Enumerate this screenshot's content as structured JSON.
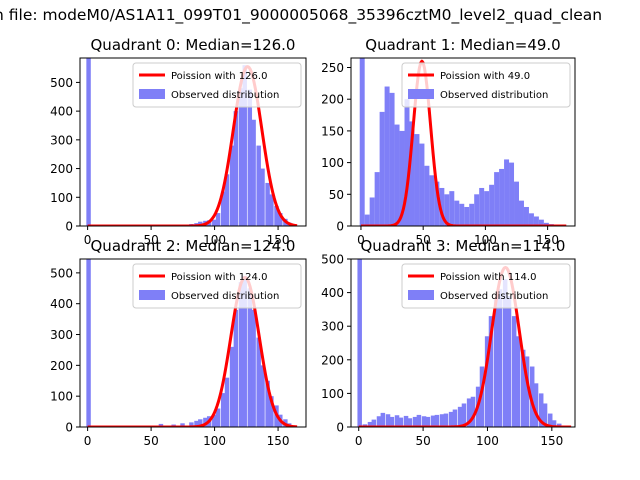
{
  "figure": {
    "suptitle": "n file: modeM0/AS1A11_099T01_9000005068_35396cztM0_level2_quad_clean"
  },
  "colors": {
    "hist": "#7f7ff7",
    "line": "#ff0000"
  },
  "chart_data": [
    {
      "type": "bar",
      "title": "Quadrant 0: Median=126.0",
      "xlim": [
        -6,
        172
      ],
      "ylim": [
        0,
        585
      ],
      "xticks": [
        0,
        50,
        100,
        150
      ],
      "yticks": [
        0,
        100,
        200,
        300,
        400,
        500
      ],
      "legend": {
        "location": "top-right",
        "line_label": "Poission with 126.0",
        "hist_label": "Observed distribution"
      },
      "bin_width": 3.5,
      "bins": [
        [
          -1,
          585
        ],
        [
          77,
          5
        ],
        [
          80,
          7
        ],
        [
          84,
          10
        ],
        [
          87,
          15
        ],
        [
          91,
          18
        ],
        [
          94,
          20
        ],
        [
          98,
          22
        ],
        [
          101,
          45
        ],
        [
          105,
          120
        ],
        [
          108,
          180
        ],
        [
          112,
          280
        ],
        [
          115,
          400
        ],
        [
          119,
          480
        ],
        [
          122,
          560
        ],
        [
          126,
          475
        ],
        [
          129,
          370
        ],
        [
          133,
          280
        ],
        [
          136,
          200
        ],
        [
          140,
          150
        ],
        [
          143,
          110
        ],
        [
          147,
          70
        ],
        [
          150,
          45
        ],
        [
          154,
          25
        ],
        [
          157,
          12
        ],
        [
          161,
          5
        ]
      ],
      "poisson_mean": 126,
      "poisson_peak": 555
    },
    {
      "type": "bar",
      "title": "Quadrant 1: Median=49.0",
      "xlim": [
        -8,
        172
      ],
      "ylim": [
        0,
        265
      ],
      "xticks": [
        0,
        50,
        100,
        150
      ],
      "yticks": [
        0,
        50,
        100,
        150,
        200,
        250
      ],
      "legend": {
        "location": "top-right",
        "line_label": "Poission with 49.0",
        "hist_label": "Observed distribution"
      },
      "bin_width": 4,
      "bins": [
        [
          -1,
          265
        ],
        [
          3,
          18
        ],
        [
          7,
          45
        ],
        [
          11,
          85
        ],
        [
          15,
          180
        ],
        [
          19,
          220
        ],
        [
          23,
          210
        ],
        [
          27,
          160
        ],
        [
          31,
          150
        ],
        [
          35,
          200
        ],
        [
          39,
          165
        ],
        [
          43,
          145
        ],
        [
          47,
          130
        ],
        [
          51,
          95
        ],
        [
          55,
          80
        ],
        [
          59,
          70
        ],
        [
          63,
          60
        ],
        [
          67,
          50
        ],
        [
          71,
          55
        ],
        [
          75,
          40
        ],
        [
          79,
          35
        ],
        [
          83,
          30
        ],
        [
          87,
          35
        ],
        [
          91,
          50
        ],
        [
          95,
          60
        ],
        [
          99,
          55
        ],
        [
          103,
          65
        ],
        [
          107,
          85
        ],
        [
          111,
          90
        ],
        [
          115,
          105
        ],
        [
          119,
          100
        ],
        [
          123,
          70
        ],
        [
          127,
          40
        ],
        [
          131,
          30
        ],
        [
          135,
          20
        ],
        [
          139,
          15
        ],
        [
          143,
          10
        ],
        [
          147,
          5
        ],
        [
          151,
          3
        ],
        [
          155,
          2
        ],
        [
          159,
          1
        ]
      ],
      "poisson_mean": 49,
      "poisson_peak": 260
    },
    {
      "type": "bar",
      "title": "Quadrant 2: Median=124.0",
      "xlim": [
        -6,
        172
      ],
      "ylim": [
        0,
        545
      ],
      "xticks": [
        0,
        50,
        100,
        150
      ],
      "yticks": [
        0,
        100,
        200,
        300,
        400,
        500
      ],
      "legend": {
        "location": "top-right",
        "line_label": "Poission with 124.0",
        "hist_label": "Observed distribution"
      },
      "bin_width": 3.5,
      "bins": [
        [
          -1,
          545
        ],
        [
          56,
          10
        ],
        [
          66,
          8
        ],
        [
          73,
          12
        ],
        [
          80,
          15
        ],
        [
          84,
          20
        ],
        [
          87,
          25
        ],
        [
          91,
          30
        ],
        [
          94,
          35
        ],
        [
          98,
          40
        ],
        [
          101,
          60
        ],
        [
          105,
          110
        ],
        [
          108,
          160
        ],
        [
          112,
          260
        ],
        [
          115,
          380
        ],
        [
          119,
          470
        ],
        [
          122,
          490
        ],
        [
          126,
          450
        ],
        [
          129,
          380
        ],
        [
          133,
          290
        ],
        [
          136,
          200
        ],
        [
          140,
          150
        ],
        [
          143,
          100
        ],
        [
          147,
          70
        ],
        [
          150,
          40
        ],
        [
          154,
          25
        ],
        [
          157,
          12
        ],
        [
          161,
          5
        ]
      ],
      "poisson_mean": 124,
      "poisson_peak": 485
    },
    {
      "type": "bar",
      "title": "Quadrant 3: Median=114.0",
      "xlim": [
        -6,
        168
      ],
      "ylim": [
        0,
        500
      ],
      "xticks": [
        0,
        50,
        100,
        150
      ],
      "yticks": [
        0,
        100,
        200,
        300,
        400,
        500
      ],
      "legend": {
        "location": "top-right",
        "line_label": "Poission with 114.0",
        "hist_label": "Observed distribution"
      },
      "bin_width": 3.5,
      "bins": [
        [
          -1,
          500
        ],
        [
          3,
          8
        ],
        [
          7,
          15
        ],
        [
          10,
          22
        ],
        [
          14,
          32
        ],
        [
          17,
          42
        ],
        [
          21,
          38
        ],
        [
          24,
          30
        ],
        [
          28,
          35
        ],
        [
          31,
          28
        ],
        [
          35,
          33
        ],
        [
          38,
          26
        ],
        [
          42,
          30
        ],
        [
          45,
          36
        ],
        [
          49,
          32
        ],
        [
          52,
          30
        ],
        [
          56,
          34
        ],
        [
          59,
          36
        ],
        [
          63,
          38
        ],
        [
          66,
          40
        ],
        [
          70,
          45
        ],
        [
          73,
          52
        ],
        [
          77,
          60
        ],
        [
          80,
          70
        ],
        [
          84,
          85
        ],
        [
          87,
          90
        ],
        [
          91,
          120
        ],
        [
          94,
          180
        ],
        [
          98,
          270
        ],
        [
          101,
          330
        ],
        [
          105,
          380
        ],
        [
          108,
          410
        ],
        [
          112,
          440
        ],
        [
          115,
          390
        ],
        [
          119,
          330
        ],
        [
          122,
          270
        ],
        [
          126,
          230
        ],
        [
          129,
          210
        ],
        [
          133,
          180
        ],
        [
          136,
          130
        ],
        [
          140,
          100
        ],
        [
          143,
          70
        ],
        [
          147,
          40
        ],
        [
          150,
          20
        ],
        [
          154,
          10
        ]
      ],
      "poisson_mean": 114,
      "poisson_peak": 475
    }
  ]
}
